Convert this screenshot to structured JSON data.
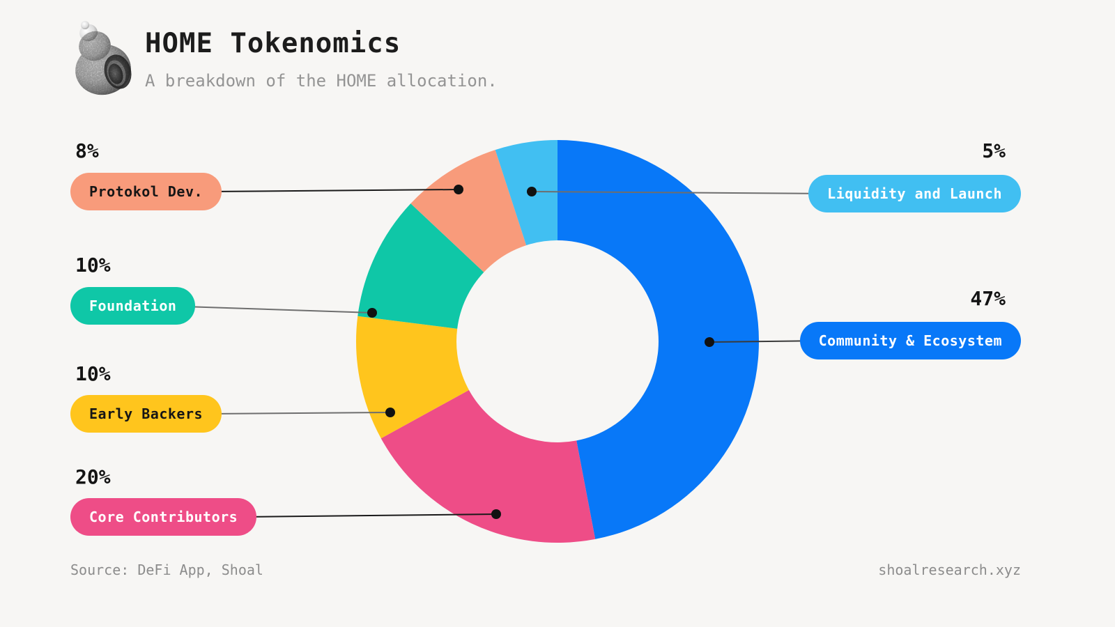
{
  "page": {
    "background": "#f7f6f4"
  },
  "header": {
    "logo_icon": "shell-icon",
    "title": "HOME Tokenomics",
    "subtitle": "A breakdown of the HOME allocation."
  },
  "footer": {
    "source": "Source: DeFi App, Shoal",
    "website": "shoalresearch.xyz"
  },
  "chart_data": {
    "type": "pie",
    "subtype": "donut",
    "title": "HOME Tokenomics",
    "start_angle_deg": 0,
    "direction": "clockwise",
    "hole_ratio": 0.5,
    "legend_position": "callout-badges",
    "segments": [
      {
        "id": "community-ecosystem",
        "label": "Community & Ecosystem",
        "value": 47,
        "pct_label": "47%",
        "color": "#0878f8",
        "text_color": "#ffffff",
        "side": "right"
      },
      {
        "id": "core-contributors",
        "label": "Core Contributors",
        "value": 20,
        "pct_label": "20%",
        "color": "#ee4d87",
        "text_color": "#ffffff",
        "side": "left"
      },
      {
        "id": "early-backers",
        "label": "Early Backers",
        "value": 10,
        "pct_label": "10%",
        "color": "#ffc51d",
        "text_color": "#161616",
        "side": "left"
      },
      {
        "id": "foundation",
        "label": "Foundation",
        "value": 10,
        "pct_label": "10%",
        "color": "#0fc7a7",
        "text_color": "#ffffff",
        "side": "left"
      },
      {
        "id": "protokol-dev",
        "label": "Protokol Dev.",
        "value": 8,
        "pct_label": "8%",
        "color": "#f89b7b",
        "text_color": "#161616",
        "side": "left"
      },
      {
        "id": "liquidity-launch",
        "label": "Liquidity and Launch",
        "value": 5,
        "pct_label": "5%",
        "color": "#41bff2",
        "text_color": "#ffffff",
        "side": "right"
      }
    ]
  }
}
